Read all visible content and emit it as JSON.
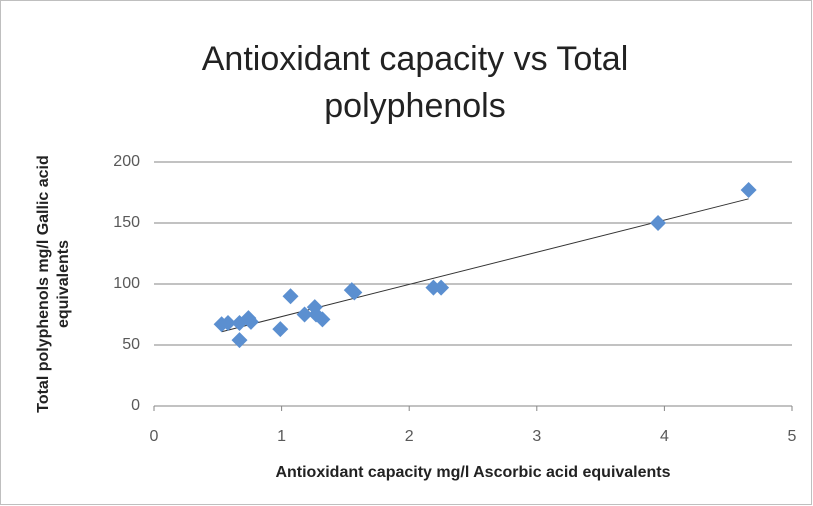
{
  "chart_data": {
    "type": "scatter",
    "title": [
      "Antioxidant capacity vs Total",
      "polyphenols"
    ],
    "x_label": "Antioxidant capacity mg/l Ascorbic acid equivalents",
    "y_label": [
      "Total polyphenols  mg/l Gallic acid",
      "equivalents"
    ],
    "series": [
      {
        "color": "#5b8fd0",
        "x": [
          0.53,
          0.58,
          0.67,
          0.67,
          0.74,
          0.76,
          0.99,
          1.07,
          1.18,
          1.26,
          1.27,
          1.32,
          1.55,
          1.57,
          2.19,
          2.25,
          3.95,
          4.66
        ],
        "values": [
          67,
          68,
          54,
          68,
          72,
          69,
          63,
          90,
          75,
          81,
          75,
          71,
          95,
          93,
          97,
          97,
          150,
          177
        ]
      }
    ],
    "trendline": true,
    "xlim": [
      0,
      5
    ],
    "xticks": [
      0,
      1,
      2,
      3,
      4,
      5
    ],
    "ylim": [
      0,
      200
    ],
    "yticks": [
      0,
      50,
      100,
      150,
      200
    ],
    "grid": true
  }
}
